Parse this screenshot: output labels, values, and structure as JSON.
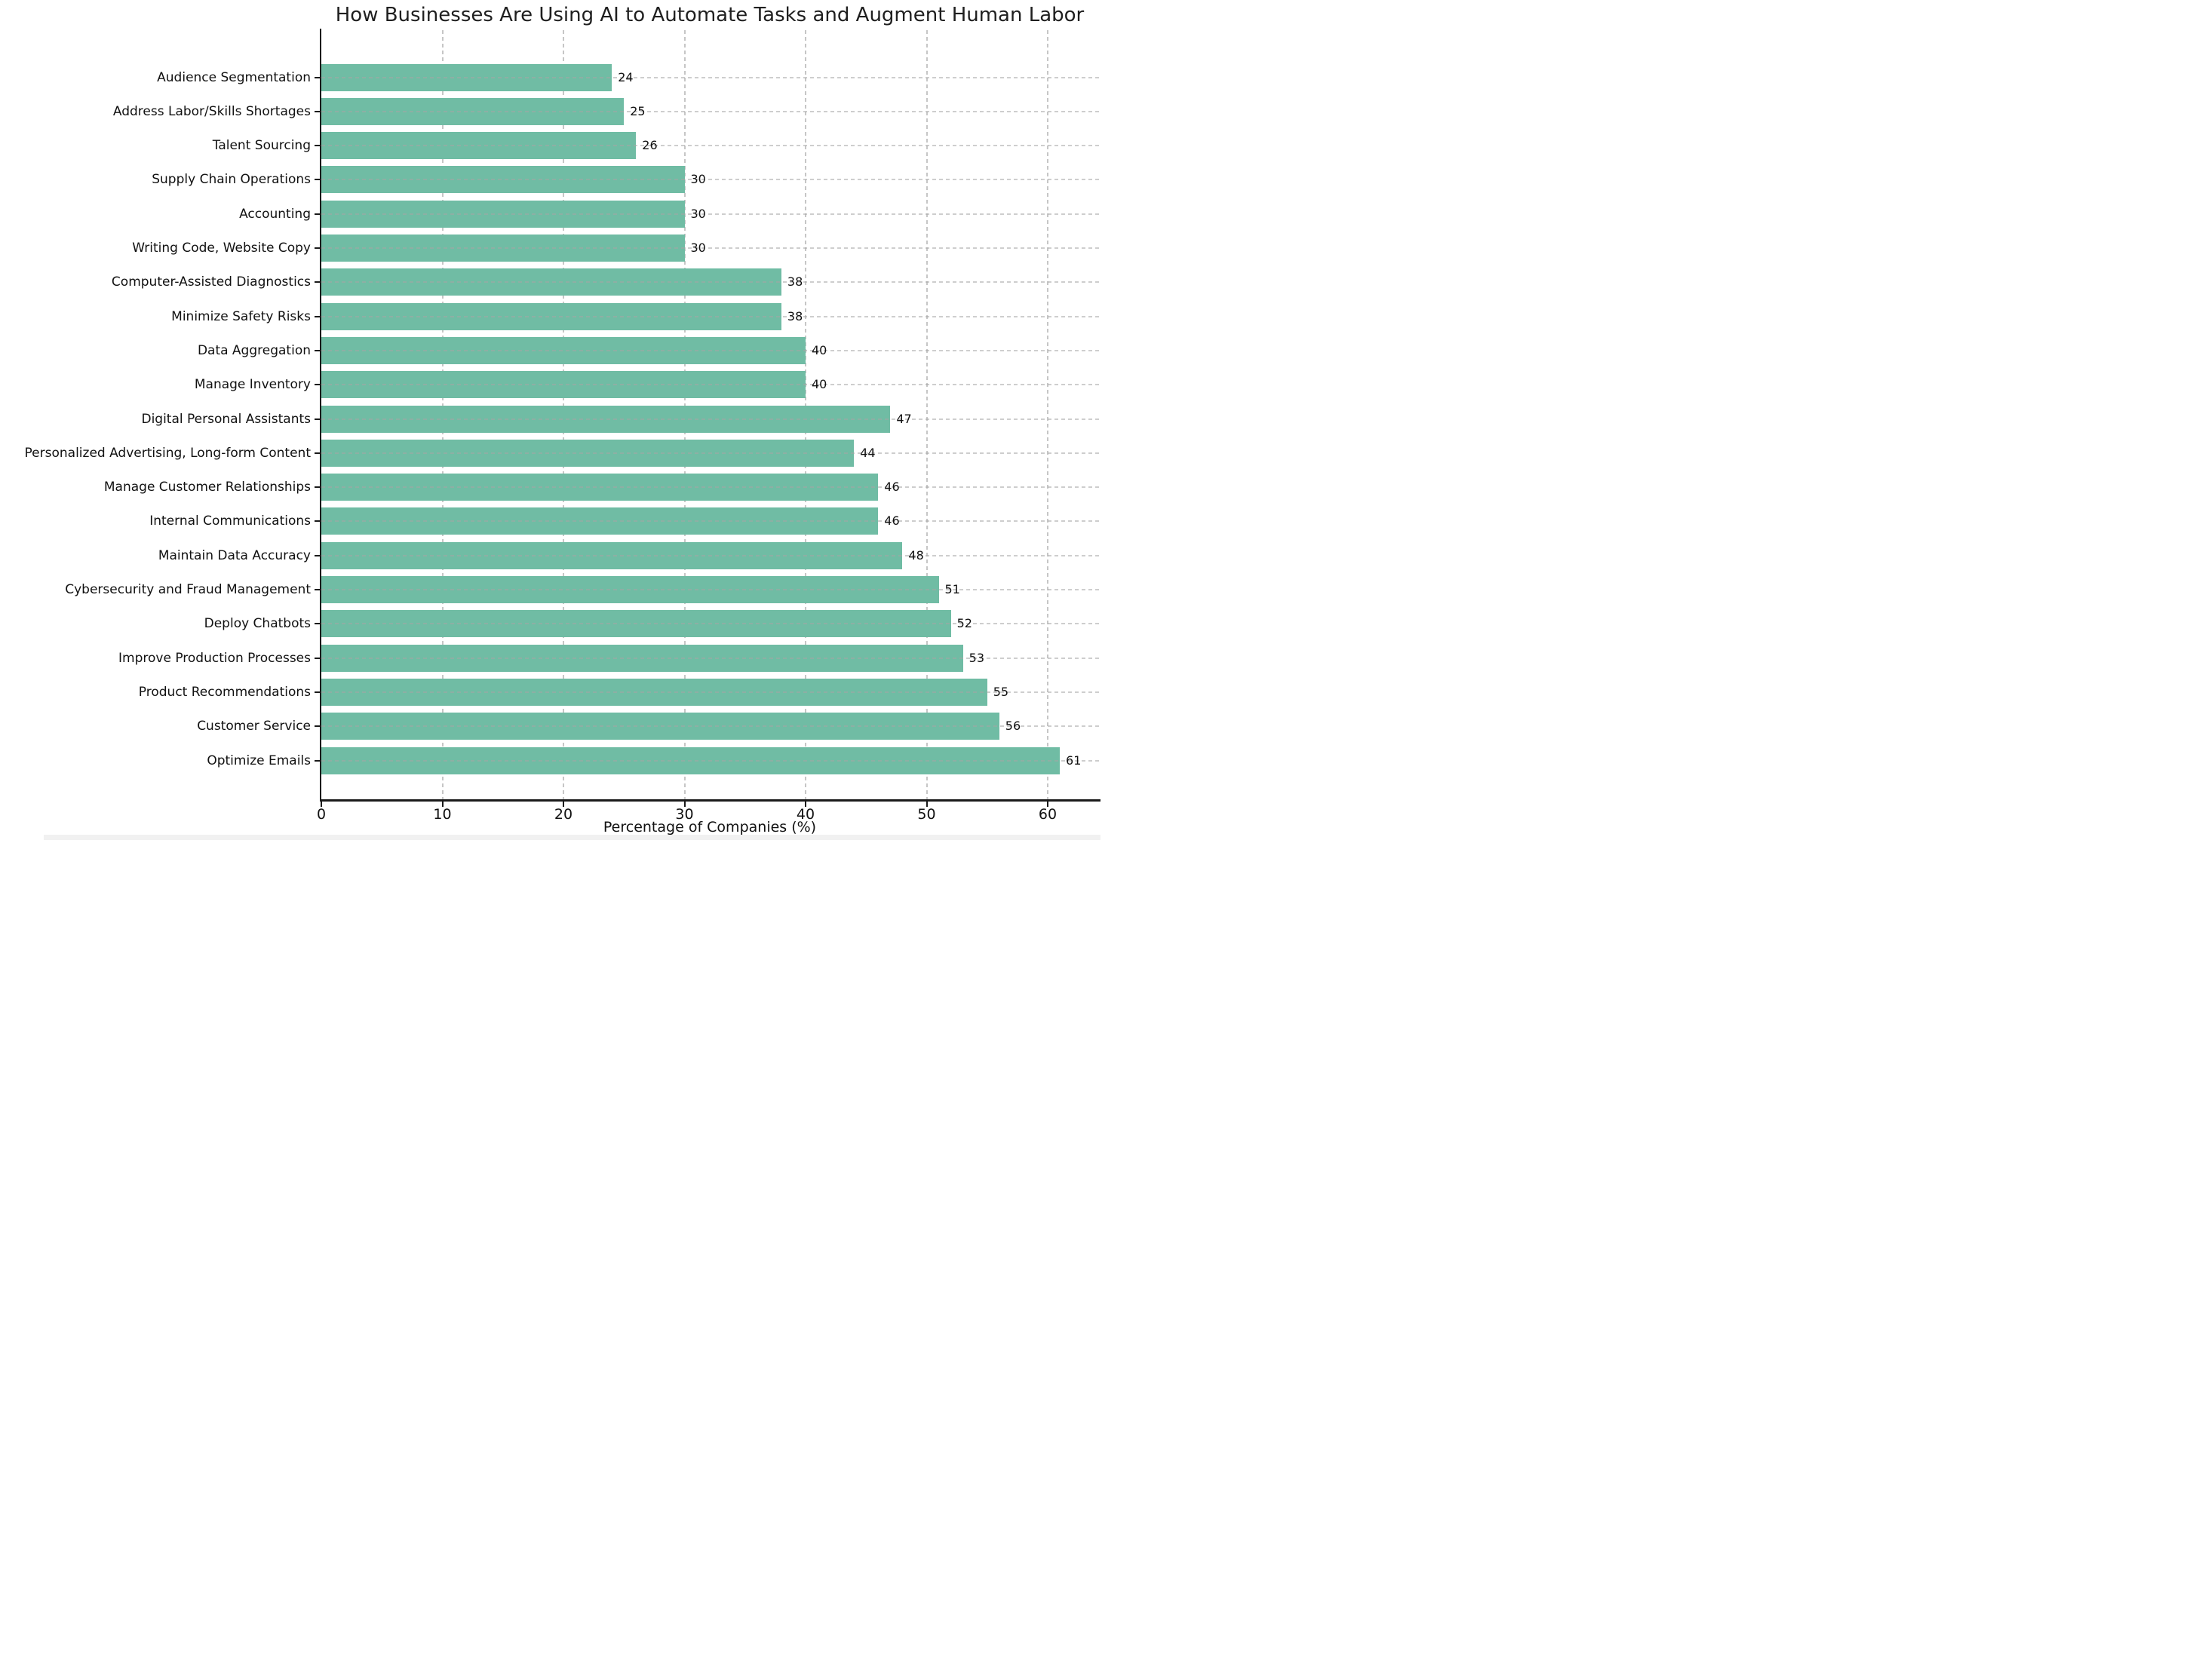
{
  "title": "How Businesses Are Using AI to Automate Tasks and Augment Human Labor",
  "chart_data": {
    "type": "bar",
    "orientation": "horizontal",
    "title": "How Businesses Are Using AI to Automate Tasks and Augment Human Labor",
    "xlabel": "Percentage of Companies (%)",
    "ylabel": "",
    "categories": [
      "Audience Segmentation",
      "Address Labor/Skills Shortages",
      "Talent Sourcing",
      "Supply Chain Operations",
      "Accounting",
      "Writing Code, Website Copy",
      "Computer-Assisted Diagnostics",
      "Minimize Safety Risks",
      "Data Aggregation",
      "Manage Inventory",
      "Digital Personal Assistants",
      "Personalized Advertising, Long-form Content",
      "Manage Customer Relationships",
      "Internal Communications",
      "Maintain Data Accuracy",
      "Cybersecurity and Fraud Management",
      "Deploy Chatbots",
      "Improve Production Processes",
      "Product Recommendations",
      "Customer Service",
      "Optimize Emails"
    ],
    "values": [
      24,
      25,
      26,
      30,
      30,
      30,
      38,
      38,
      40,
      40,
      47,
      44,
      46,
      46,
      48,
      51,
      52,
      53,
      55,
      56,
      61
    ],
    "x_ticks": [
      0,
      10,
      20,
      30,
      40,
      50,
      60
    ],
    "xlim": [
      0,
      64
    ],
    "bar_color": "#70bca4",
    "grid": "dashed",
    "grid_color": "#c6c6c6",
    "legend_position": "none",
    "value_labels_shown": true
  }
}
